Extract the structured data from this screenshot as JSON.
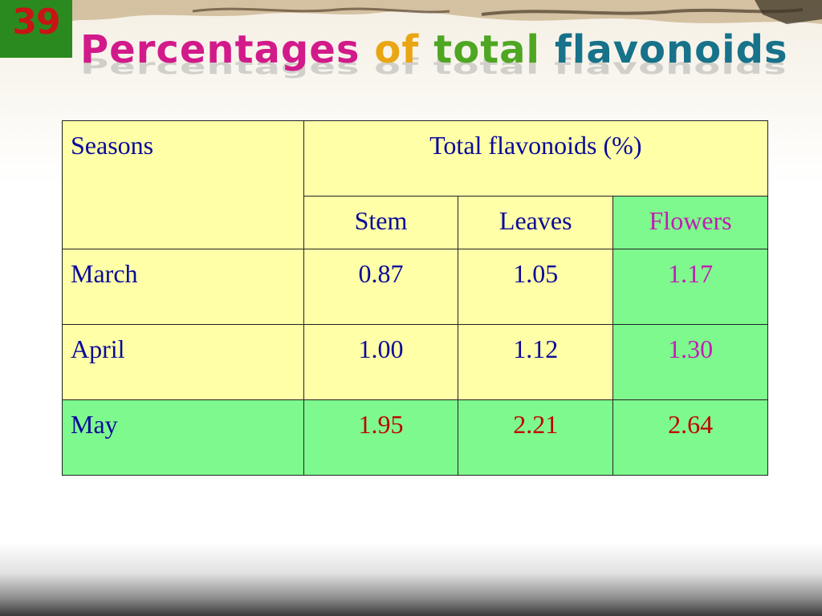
{
  "slide": {
    "number": "39",
    "title_words": [
      "Percentages",
      "of",
      "total",
      "flavonoids"
    ]
  },
  "colors": {
    "number_bg": "#2b8a1f",
    "number_text": "#c81414",
    "cell_yellow": "#ffffa8",
    "cell_green": "#7ef98e",
    "text_blue": "#0a0a9a",
    "text_magenta": "#c41bb5",
    "text_red": "#c00000"
  },
  "table": {
    "header": {
      "seasons": "Seasons",
      "group": "Total flavonoids (%)",
      "columns": [
        "Stem",
        "Leaves",
        "Flowers"
      ]
    },
    "rows": [
      {
        "season": "March",
        "values": [
          "0.87",
          "1.05",
          "1.17"
        ]
      },
      {
        "season": "April",
        "values": [
          "1.00",
          "1.12",
          "1.30"
        ]
      },
      {
        "season": "May",
        "values": [
          "1.95",
          "2.21",
          "2.64"
        ]
      }
    ]
  }
}
